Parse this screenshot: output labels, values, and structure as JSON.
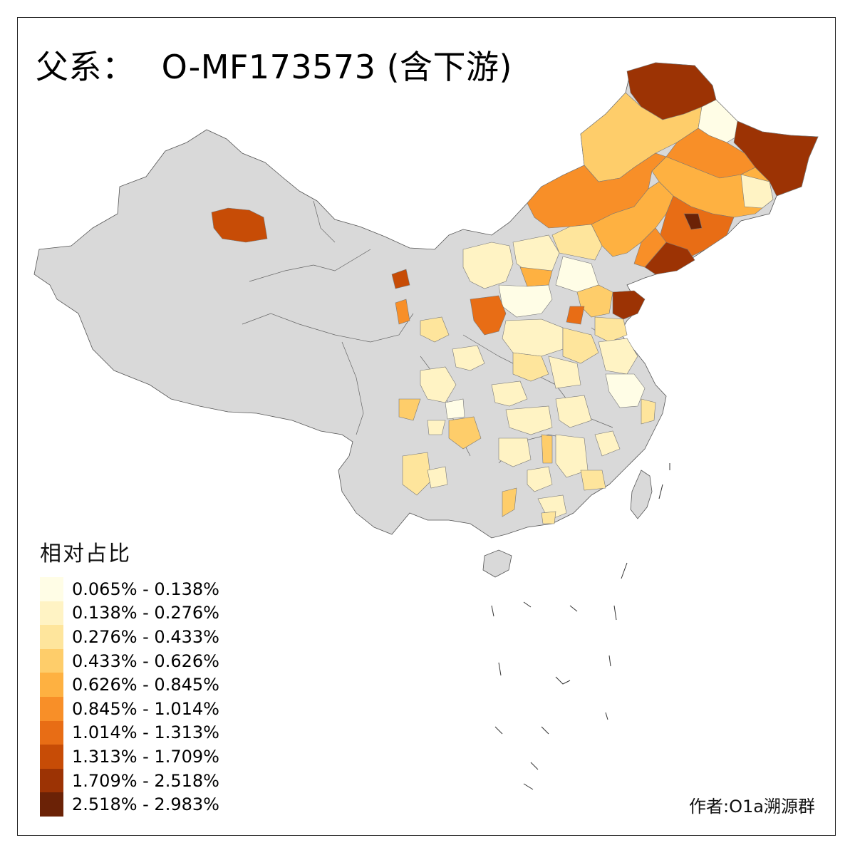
{
  "title": {
    "prefix": "父系：",
    "haplogroup": "O-MF173573",
    "suffix": "(含下游)"
  },
  "legend": {
    "title": "相对占比",
    "classes": [
      {
        "label": "0.065% - 0.138%",
        "color": "#fffde6"
      },
      {
        "label": "0.138% - 0.276%",
        "color": "#fff3c4"
      },
      {
        "label": "0.276% - 0.433%",
        "color": "#fee59c"
      },
      {
        "label": "0.433% - 0.626%",
        "color": "#fecd6a"
      },
      {
        "label": "0.626% - 0.845%",
        "color": "#feb141"
      },
      {
        "label": "0.845% - 1.014%",
        "color": "#f88f28"
      },
      {
        "label": "1.014% - 1.313%",
        "color": "#e86d15"
      },
      {
        "label": "1.313% - 1.709%",
        "color": "#c74c06"
      },
      {
        "label": "1.709% - 2.518%",
        "color": "#9c3304"
      },
      {
        "label": "2.518% - 2.983%",
        "color": "#6b2206"
      }
    ]
  },
  "no_data_color": "#d9d9d9",
  "author": "作者:O1a溯源群"
}
